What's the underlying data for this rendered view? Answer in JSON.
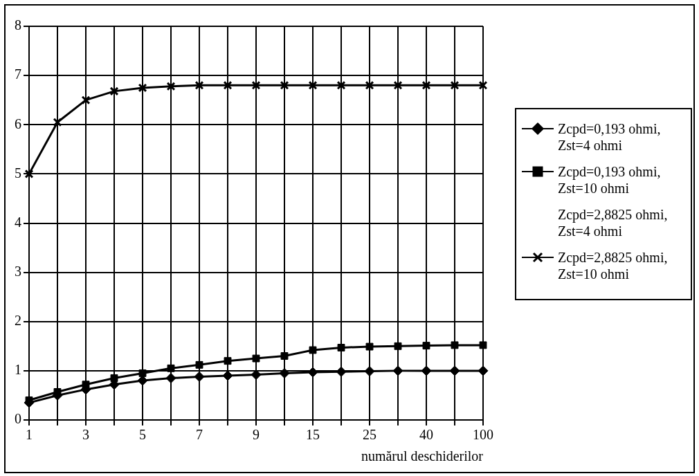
{
  "chart_data": {
    "type": "line",
    "xlabel": "numărul deschiderilor",
    "categories": [
      "1",
      null,
      "3",
      null,
      "5",
      null,
      "7",
      null,
      "9",
      null,
      "15",
      null,
      "25",
      null,
      "40",
      null,
      "100"
    ],
    "series": [
      {
        "name": "Zcpd=0,193 ohmi, Zst=4 ohmi",
        "color": "#000000",
        "marker": "diamond",
        "values": [
          0.35,
          0.5,
          0.62,
          0.72,
          0.8,
          0.85,
          0.88,
          0.9,
          0.92,
          0.95,
          0.97,
          0.98,
          0.99,
          1.0,
          1.0,
          1.0,
          1.0
        ]
      },
      {
        "name": "Zcpd=0,193 ohmi, Zst=10 ohmi",
        "color": "#000000",
        "marker": "square",
        "values": [
          0.4,
          0.57,
          0.72,
          0.85,
          0.95,
          1.05,
          1.12,
          1.2,
          1.25,
          1.3,
          1.42,
          1.47,
          1.49,
          1.5,
          1.51,
          1.52,
          1.52
        ]
      },
      {
        "name": "Zcpd=2,8825 ohmi, Zst=4 ohmi",
        "marker": "none",
        "values": [
          null,
          null,
          null,
          null,
          null,
          null,
          null,
          null,
          null,
          null,
          null,
          null,
          null,
          null,
          null,
          null,
          null
        ]
      },
      {
        "name": "Zcpd=2,8825 ohmi, Zst=10 ohmi",
        "color": "#000000",
        "marker": "cross",
        "values": [
          5,
          6.05,
          6.5,
          6.68,
          6.75,
          6.78,
          6.8,
          6.8,
          6.8,
          6.8,
          6.8,
          6.8,
          6.8,
          6.8,
          6.8,
          6.8,
          6.8
        ]
      }
    ],
    "ylim": [
      0,
      8
    ],
    "yticks": [
      0,
      1,
      2,
      3,
      4,
      5,
      6,
      7,
      8
    ],
    "grid": true,
    "legend": "right"
  }
}
